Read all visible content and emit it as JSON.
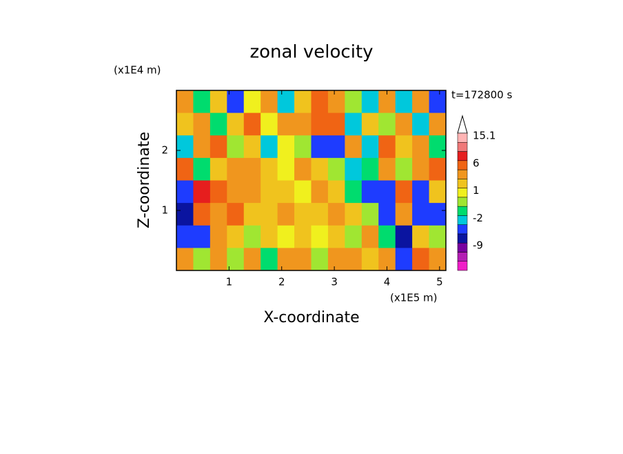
{
  "chart_data": {
    "type": "contour",
    "title": "zonal velocity",
    "xlabel": "X-coordinate",
    "ylabel": "Z-coordinate",
    "x_unit": "(x1E5 m)",
    "y_unit": "(x1E4 m)",
    "annotation": "t=172800 s",
    "xlim": [
      0,
      5.12
    ],
    "ylim": [
      0,
      3
    ],
    "xticks": [
      1,
      2,
      3,
      4,
      5
    ],
    "yticks": [
      1,
      2
    ],
    "z": [
      [
        3,
        -2,
        1,
        -5,
        0,
        2,
        -3,
        1,
        4,
        2,
        -1,
        -4,
        3,
        -4,
        2,
        -5
      ],
      [
        1,
        3,
        -2,
        1,
        4,
        0,
        3,
        2,
        5,
        4,
        -4,
        1,
        -1,
        3,
        -3,
        2
      ],
      [
        -3,
        2,
        4,
        -1,
        1,
        -3,
        0,
        -1,
        -5,
        -6,
        2,
        -3,
        4,
        1,
        3,
        -2
      ],
      [
        5,
        -2,
        1,
        3,
        2,
        1,
        0,
        2,
        1,
        -1,
        -3,
        -2,
        3,
        -1,
        2,
        4
      ],
      [
        -6,
        7,
        4,
        2,
        3,
        1,
        1,
        0,
        2,
        1,
        -2,
        -6,
        -5,
        4,
        -5,
        1
      ],
      [
        -7,
        4,
        3,
        5,
        1,
        1,
        2,
        1,
        1,
        2,
        1,
        -1,
        -6,
        2,
        -5,
        -6
      ],
      [
        -5,
        -5,
        2,
        1,
        -1,
        1,
        0,
        1,
        0,
        1,
        -1,
        2,
        -2,
        -7,
        1,
        -1
      ],
      [
        3,
        -1,
        2,
        -1,
        2,
        -2,
        3,
        2,
        -1,
        2,
        3,
        1,
        2,
        -5,
        4,
        3
      ]
    ],
    "levels": [
      -15,
      -12,
      -9,
      -6,
      -4,
      -2,
      -1,
      0,
      1,
      2,
      4,
      6,
      9,
      12,
      15.1
    ],
    "colors": [
      "#f01ec8",
      "#b41eb4",
      "#7800a0",
      "#0a14a0",
      "#1e3cff",
      "#00c8dc",
      "#00dc6e",
      "#a0e632",
      "#f0f01e",
      "#f0c31e",
      "#f0961e",
      "#f06414",
      "#e61e1e",
      "#f07878",
      "#ffb4b4"
    ],
    "colorbar_labels": [
      15.1,
      6,
      1,
      -2,
      -9
    ]
  }
}
